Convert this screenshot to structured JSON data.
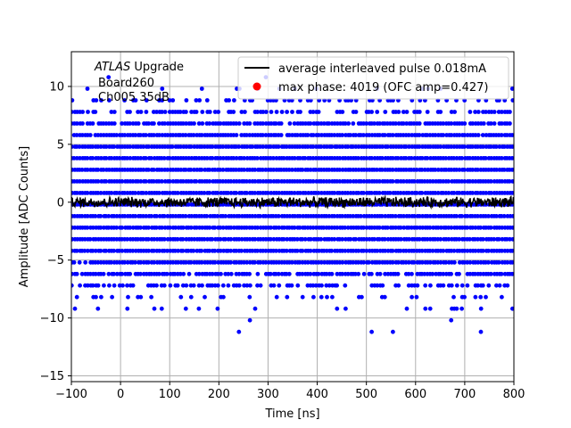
{
  "chart_data": {
    "type": "scatter",
    "title": "",
    "xlabel": "Time [ns]",
    "ylabel": "Amplitude [ADC Counts]",
    "xlim": [
      -100,
      800
    ],
    "ylim": [
      -15.5,
      13
    ],
    "xticks": [
      "-100",
      "0",
      "100",
      "200",
      "300",
      "400",
      "500",
      "600",
      "700",
      "800"
    ],
    "yticks": [
      "-15",
      "-10",
      "-5",
      "0",
      "5",
      "10"
    ],
    "grid": true,
    "legend_position": "top-right",
    "annotation": {
      "line1_italic": "ATLAS",
      "line1_rest": " Upgrade",
      "line2": "Board260",
      "line3": "Ch005 35dB"
    },
    "series": [
      {
        "name": "average interleaved pulse 0.018mA",
        "kind": "line",
        "color": "#000000",
        "x_range": [
          -100,
          800
        ],
        "mean": 0,
        "noise_amplitude": 0.5
      },
      {
        "name": "max phase: 4019 (OFC amp=0.427)",
        "kind": "marker",
        "color": "#ff0000"
      },
      {
        "name": "samples",
        "kind": "points",
        "color": "#0000ff",
        "levels": [
          -11.2,
          -10.2,
          -9.2,
          -8.2,
          -7.2,
          -6.2,
          -5.2,
          -4.2,
          -3.2,
          -2.2,
          -1.2,
          -0.2,
          0.8,
          1.8,
          2.8,
          3.8,
          4.8,
          5.8,
          6.8,
          7.8,
          8.8,
          9.8,
          10.8
        ],
        "level_density": [
          0.01,
          0.03,
          0.08,
          0.25,
          0.55,
          0.85,
          0.97,
          1,
          1,
          1,
          1,
          1,
          1,
          1,
          1,
          1,
          1,
          0.97,
          0.85,
          0.55,
          0.25,
          0.08,
          0.02
        ]
      }
    ]
  }
}
